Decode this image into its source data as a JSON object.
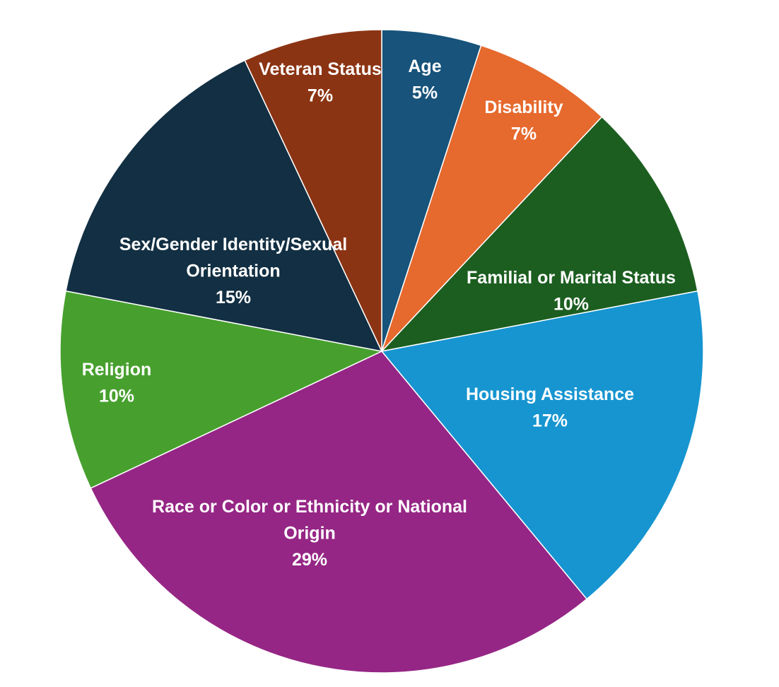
{
  "chart_data": {
    "type": "pie",
    "title": "",
    "start_angle_deg": 0,
    "direction": "clockwise",
    "slices": [
      {
        "label": "Age",
        "value": 5,
        "value_label": "5%",
        "color": "#17537a"
      },
      {
        "label": "Disability",
        "value": 7,
        "value_label": "7%",
        "color": "#e6692d"
      },
      {
        "label": "Familial or Marital Status",
        "value": 10,
        "value_label": "10%",
        "color": "#1c5e20"
      },
      {
        "label": "Housing Assistance",
        "value": 17,
        "value_label": "17%",
        "color": "#1695d0"
      },
      {
        "label": "Race or Color or Ethnicity or National Origin",
        "value": 29,
        "value_label": "29%",
        "color": "#952685"
      },
      {
        "label": "Religion",
        "value": 10,
        "value_label": "10%",
        "color": "#47a02e"
      },
      {
        "label": "Sex/Gender Identity/Sexual Orientation",
        "value": 15,
        "value_label": "15%",
        "color": "#122f43"
      },
      {
        "label": "Veteran Status",
        "value": 7,
        "value_label": "7%",
        "color": "#8b3413"
      }
    ]
  }
}
